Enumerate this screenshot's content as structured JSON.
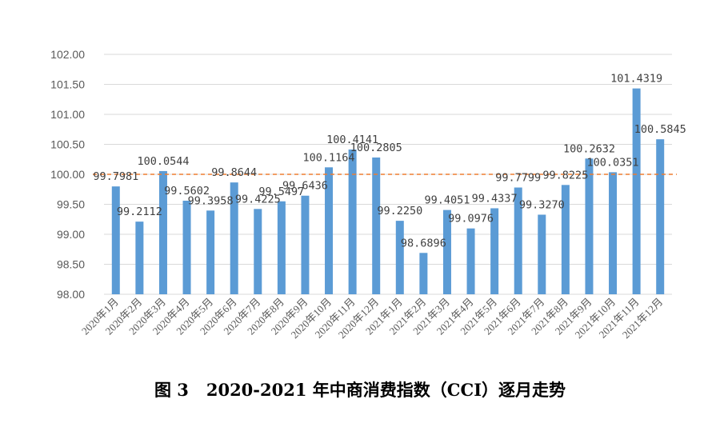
{
  "chart_data": {
    "type": "bar",
    "title": "图 3   2020-2021 年中商消费指数（CCI）逐月走势",
    "xlabel": "",
    "ylabel": "",
    "ylim": [
      98.0,
      102.0
    ],
    "yticks": [
      "98.00",
      "98.50",
      "99.00",
      "99.50",
      "100.00",
      "100.50",
      "101.00",
      "101.50",
      "102.00"
    ],
    "grid": true,
    "legend": "none",
    "bar_color": "#5B9BD5",
    "reference_line": {
      "value": 100.0,
      "color": "#ED7D31",
      "style": "dashed"
    },
    "categories": [
      "2020年1月",
      "2020年2月",
      "2020年3月",
      "2020年4月",
      "2020年5月",
      "2020年6月",
      "2020年7月",
      "2020年8月",
      "2020年9月",
      "2020年10月",
      "2020年11月",
      "2020年12月",
      "2021年1月",
      "2021年2月",
      "2021年3月",
      "2021年4月",
      "2021年5月",
      "2021年6月",
      "2021年7月",
      "2021年8月",
      "2021年9月",
      "2021年10月",
      "2021年11月",
      "2021年12月"
    ],
    "values": [
      99.7981,
      99.2112,
      100.0544,
      99.5602,
      99.3958,
      99.8644,
      99.4225,
      99.5497,
      99.6436,
      100.1164,
      100.4141,
      100.2805,
      99.225,
      98.6896,
      99.4051,
      99.0976,
      99.4337,
      99.7799,
      99.327,
      99.8225,
      100.2632,
      100.0351,
      101.4319,
      100.5845
    ],
    "data_labels": [
      "99.7981",
      "99.2112",
      "100.0544",
      "99.5602",
      "99.3958",
      "99.8644",
      "99.4225",
      "99.5497",
      "99.6436",
      "100.1164",
      "100.4141",
      "100.2805",
      "99.2250",
      "98.6896",
      "99.4051",
      "99.0976",
      "99.4337",
      "99.7799",
      "99.3270",
      "99.8225",
      "100.2632",
      "100.0351",
      "101.4319",
      "100.5845"
    ]
  }
}
